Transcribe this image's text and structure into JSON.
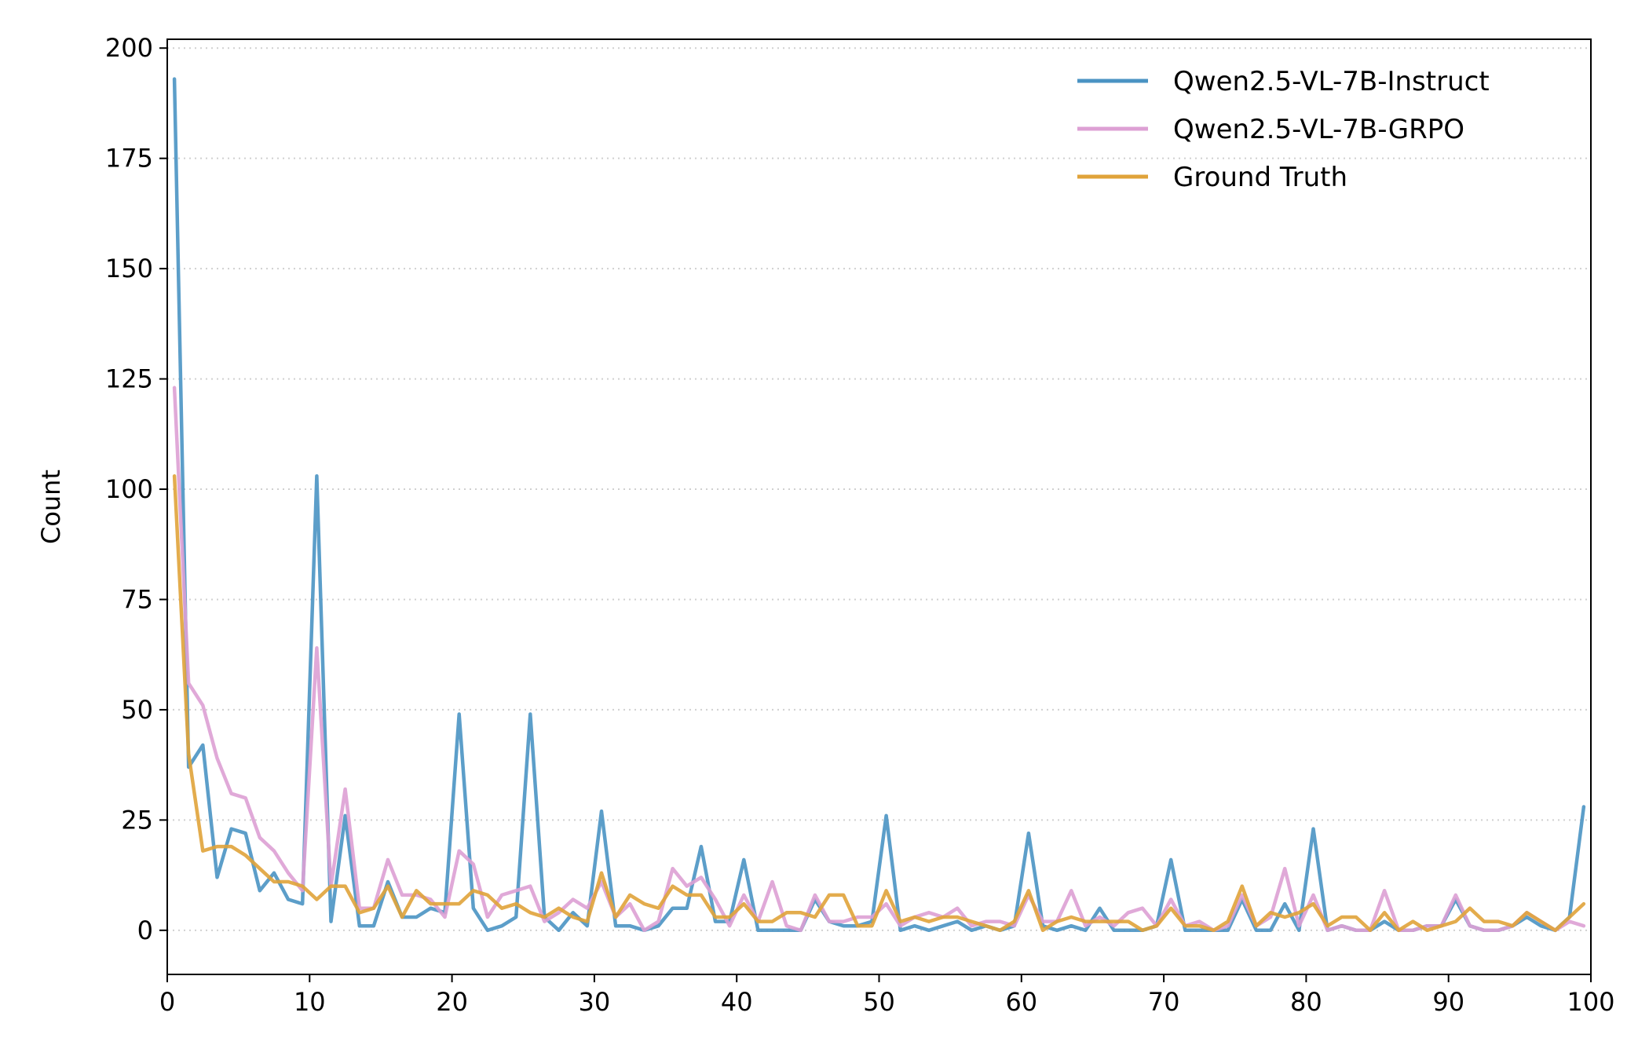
{
  "chart_data": {
    "type": "line",
    "title": "",
    "xlabel": "",
    "ylabel": "Count",
    "xlim": [
      0,
      100
    ],
    "ylim": [
      -10,
      202
    ],
    "xticks": [
      0,
      10,
      20,
      30,
      40,
      50,
      60,
      70,
      80,
      90,
      100
    ],
    "yticks": [
      0,
      25,
      50,
      75,
      100,
      125,
      150,
      175,
      200
    ],
    "grid": "horizontal dotted",
    "legend_position": "top-right",
    "x": [
      0.5,
      1.5,
      2.5,
      3.5,
      4.5,
      5.5,
      6.5,
      7.5,
      8.5,
      9.5,
      10.5,
      11.5,
      12.5,
      13.5,
      14.5,
      15.5,
      16.5,
      17.5,
      18.5,
      19.5,
      20.5,
      21.5,
      22.5,
      23.5,
      24.5,
      25.5,
      26.5,
      27.5,
      28.5,
      29.5,
      30.5,
      31.5,
      32.5,
      33.5,
      34.5,
      35.5,
      36.5,
      37.5,
      38.5,
      39.5,
      40.5,
      41.5,
      42.5,
      43.5,
      44.5,
      45.5,
      46.5,
      47.5,
      48.5,
      49.5,
      50.5,
      51.5,
      52.5,
      53.5,
      54.5,
      55.5,
      56.5,
      57.5,
      58.5,
      59.5,
      60.5,
      61.5,
      62.5,
      63.5,
      64.5,
      65.5,
      66.5,
      67.5,
      68.5,
      69.5,
      70.5,
      71.5,
      72.5,
      73.5,
      74.5,
      75.5,
      76.5,
      77.5,
      78.5,
      79.5,
      80.5,
      81.5,
      82.5,
      83.5,
      84.5,
      85.5,
      86.5,
      87.5,
      88.5,
      89.5,
      90.5,
      91.5,
      92.5,
      93.5,
      94.5,
      95.5,
      96.5,
      97.5,
      98.5,
      99.5
    ],
    "series": [
      {
        "name": "Qwen2.5-VL-7B-Instruct",
        "color": "#4a93c3",
        "values": [
          193,
          37,
          42,
          12,
          23,
          22,
          9,
          13,
          7,
          6,
          103,
          2,
          26,
          1,
          1,
          11,
          3,
          3,
          5,
          4,
          49,
          5,
          0,
          1,
          3,
          49,
          3,
          0,
          4,
          1,
          27,
          1,
          1,
          0,
          1,
          5,
          5,
          19,
          2,
          2,
          16,
          0,
          0,
          0,
          0,
          7,
          2,
          1,
          1,
          2,
          26,
          0,
          1,
          0,
          1,
          2,
          0,
          1,
          0,
          1,
          22,
          1,
          0,
          1,
          0,
          5,
          0,
          0,
          0,
          1,
          16,
          0,
          0,
          0,
          0,
          7,
          0,
          0,
          6,
          0,
          23,
          0,
          1,
          0,
          0,
          2,
          0,
          0,
          1,
          1,
          7,
          1,
          0,
          0,
          1,
          3,
          1,
          0,
          3,
          28
        ]
      },
      {
        "name": "Qwen2.5-VL-7B-GRPO",
        "color": "#dda0d4",
        "values": [
          123,
          56,
          51,
          39,
          31,
          30,
          21,
          18,
          13,
          9,
          64,
          10,
          32,
          5,
          5,
          16,
          8,
          8,
          7,
          3,
          18,
          15,
          3,
          8,
          9,
          10,
          2,
          4,
          7,
          5,
          11,
          3,
          6,
          0,
          2,
          14,
          10,
          12,
          7,
          1,
          8,
          2,
          11,
          1,
          0,
          8,
          2,
          2,
          3,
          3,
          6,
          1,
          3,
          4,
          3,
          5,
          1,
          2,
          2,
          1,
          8,
          2,
          2,
          9,
          1,
          3,
          1,
          4,
          5,
          1,
          7,
          1,
          2,
          0,
          1,
          8,
          1,
          3,
          14,
          1,
          8,
          0,
          1,
          0,
          0,
          9,
          0,
          0,
          1,
          1,
          8,
          1,
          0,
          0,
          1,
          4,
          2,
          0,
          2,
          1
        ]
      },
      {
        "name": "Ground Truth",
        "color": "#e0a33a",
        "values": [
          103,
          40,
          18,
          19,
          19,
          17,
          14,
          11,
          11,
          10,
          7,
          10,
          10,
          4,
          5,
          10,
          3,
          9,
          6,
          6,
          6,
          9,
          8,
          5,
          6,
          4,
          3,
          5,
          3,
          2,
          13,
          3,
          8,
          6,
          5,
          10,
          8,
          8,
          3,
          3,
          6,
          2,
          2,
          4,
          4,
          3,
          8,
          8,
          1,
          1,
          9,
          2,
          3,
          2,
          3,
          3,
          2,
          1,
          0,
          2,
          9,
          0,
          2,
          3,
          2,
          2,
          2,
          2,
          0,
          1,
          5,
          1,
          1,
          0,
          2,
          10,
          1,
          4,
          3,
          4,
          6,
          1,
          3,
          3,
          0,
          4,
          0,
          2,
          0,
          1,
          2,
          5,
          2,
          2,
          1,
          4,
          2,
          0,
          3,
          6
        ]
      }
    ]
  }
}
